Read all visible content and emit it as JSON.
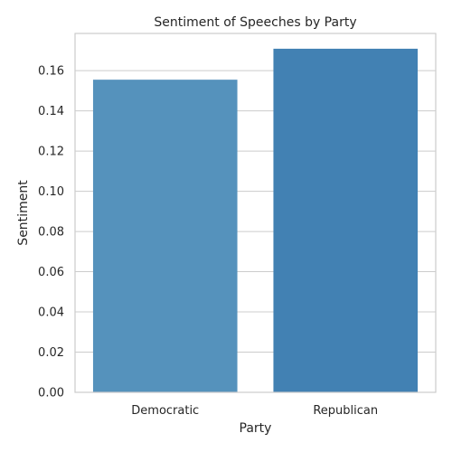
{
  "chart_data": {
    "type": "bar",
    "title": "Sentiment of Speeches by Party",
    "xlabel": "Party",
    "ylabel": "Sentiment",
    "categories": [
      "Democratic",
      "Republican"
    ],
    "values": [
      0.1555,
      0.1709
    ],
    "ylim": [
      0,
      0.1785
    ],
    "yticks": [
      0.0,
      0.02,
      0.04,
      0.06,
      0.08,
      0.1,
      0.12,
      0.14,
      0.16
    ],
    "ytick_labels": [
      "0.00",
      "0.02",
      "0.04",
      "0.06",
      "0.08",
      "0.10",
      "0.12",
      "0.14",
      "0.16"
    ],
    "grid": "horizontal",
    "bar_colors": [
      "#5592bc",
      "#4281b3"
    ],
    "legend": "none"
  }
}
